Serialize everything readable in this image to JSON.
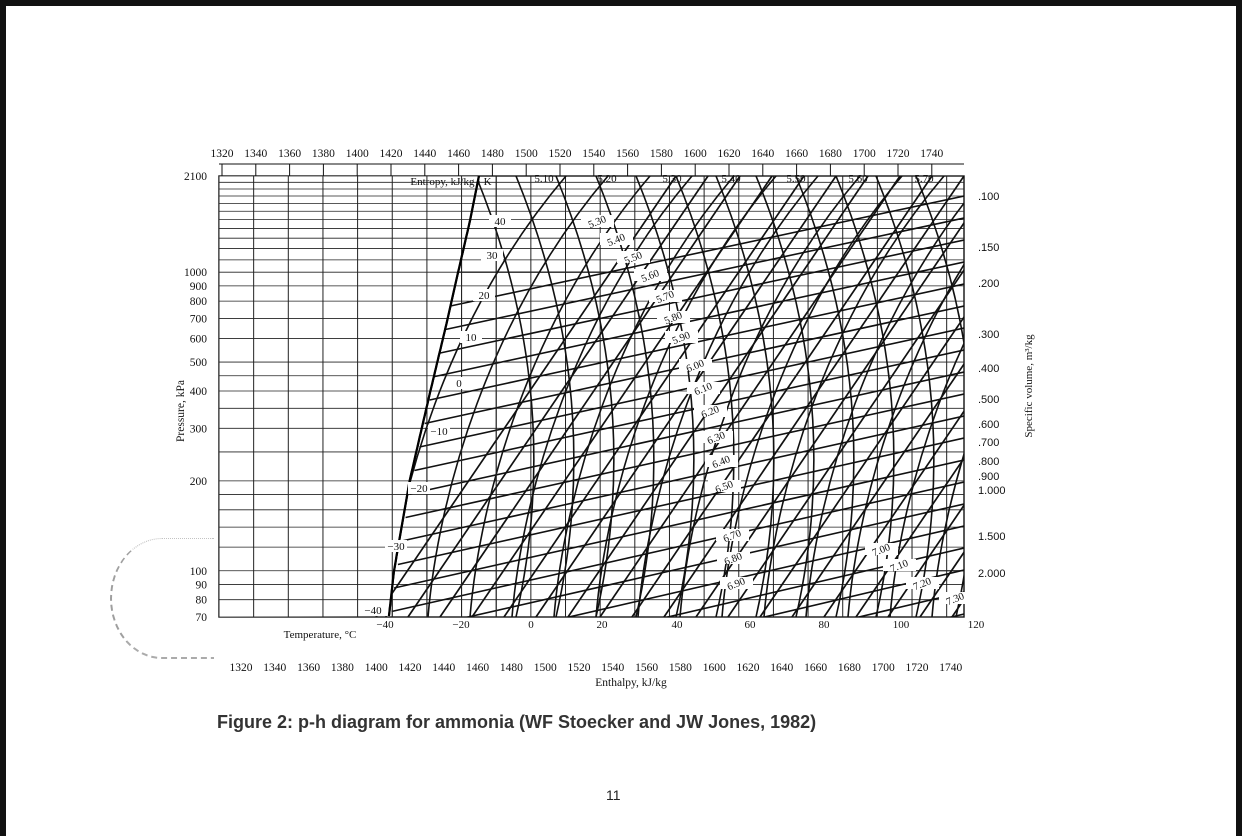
{
  "document": {
    "caption": "Figure 2: p-h diagram for ammonia (WF Stoecker and JW Jones, 1982)",
    "page_number": "11"
  },
  "chart_data": {
    "type": "line",
    "title": "",
    "xlabel": "Enthalpy, kJ/kg",
    "ylabel": "Pressure, kPa",
    "y2label": "Specific volume, m³/kg",
    "xlim": [
      1320,
      1750
    ],
    "ylim": [
      70,
      2100
    ],
    "y_scale": "log",
    "x_ticks": [
      "1320",
      "1340",
      "1360",
      "1380",
      "1400",
      "1420",
      "1440",
      "1460",
      "1480",
      "1500",
      "1520",
      "1540",
      "1560",
      "1580",
      "1600",
      "1620",
      "1640",
      "1660",
      "1680",
      "1700",
      "1720",
      "1740"
    ],
    "y_ticks": [
      {
        "value": 2100,
        "label": "2100"
      },
      {
        "value": 1000,
        "label": "1000"
      },
      {
        "value": 900,
        "label": "900"
      },
      {
        "value": 800,
        "label": "800"
      },
      {
        "value": 700,
        "label": "700"
      },
      {
        "value": 600,
        "label": "600"
      },
      {
        "value": 500,
        "label": "500"
      },
      {
        "value": 400,
        "label": "400"
      },
      {
        "value": 300,
        "label": "300"
      },
      {
        "value": 200,
        "label": "200"
      },
      {
        "value": 100,
        "label": "100"
      },
      {
        "value": 90,
        "label": "90"
      },
      {
        "value": 80,
        "label": "80"
      },
      {
        "value": 70,
        "label": "70"
      }
    ],
    "entropy_label": "Entropy, kJ/kg · K",
    "entropy_top_labels": [
      "5.10",
      "5.20",
      "5.30",
      "5.40",
      "5.50",
      "5.60",
      "5.70"
    ],
    "entropy_inner_labels": [
      "5.30",
      "5.40",
      "5.50",
      "5.60",
      "5.70",
      "5.80",
      "5.90",
      "6.00",
      "6.10",
      "6.20",
      "6.30",
      "6.40",
      "6.50",
      "6.70",
      "6.80",
      "6.90",
      "7.00",
      "7.10",
      "7.20",
      "7.30"
    ],
    "temperature_label": "Temperature, °C",
    "temperature_bottom_labels": [
      "−40",
      "−20",
      "0",
      "20",
      "40",
      "60",
      "80",
      "100",
      "120"
    ],
    "saturation_temperature_labels": [
      "40",
      "30",
      "20",
      "10",
      "0",
      "−10",
      "−20",
      "−30",
      "−40"
    ],
    "specific_volume_labels": [
      ".100",
      ".150",
      ".200",
      ".300",
      ".400",
      ".500",
      ".600",
      ".700",
      ".800",
      ".900",
      "1.000",
      "1.500",
      "2.000"
    ],
    "saturated_vapor_line": [
      {
        "h": 1418,
        "p": 70
      },
      {
        "h": 1421,
        "p": 100
      },
      {
        "h": 1430,
        "p": 200
      },
      {
        "h": 1437,
        "p": 300
      },
      {
        "h": 1442,
        "p": 400
      },
      {
        "h": 1446,
        "p": 500
      },
      {
        "h": 1452,
        "p": 700
      },
      {
        "h": 1458,
        "p": 1000
      },
      {
        "h": 1465,
        "p": 1500
      },
      {
        "h": 1470,
        "p": 2100
      }
    ]
  }
}
